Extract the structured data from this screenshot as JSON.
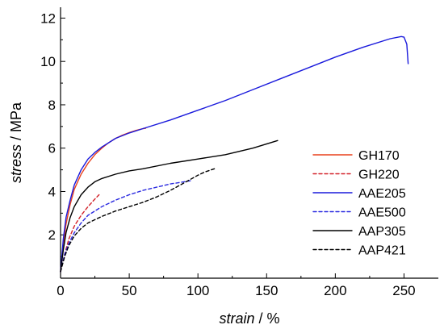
{
  "chart_data": {
    "type": "line",
    "xlabel": {
      "italic": "strain",
      "rest": " / %"
    },
    "ylabel": {
      "italic": "stress",
      "rest": " / MPa"
    },
    "xlim": [
      0,
      275
    ],
    "ylim": [
      0,
      12.5
    ],
    "xticks": [
      0,
      50,
      100,
      150,
      200,
      250
    ],
    "yticks": [
      2,
      4,
      6,
      8,
      10,
      12
    ],
    "legend_position": "center-right",
    "series": [
      {
        "name": "GH170",
        "color": "#e8401c",
        "dash": "solid",
        "points": [
          [
            0,
            0.3
          ],
          [
            2,
            1.5
          ],
          [
            4,
            2.5
          ],
          [
            7,
            3.4
          ],
          [
            10,
            4.1
          ],
          [
            15,
            4.8
          ],
          [
            20,
            5.3
          ],
          [
            25,
            5.7
          ],
          [
            30,
            6.0
          ],
          [
            35,
            6.25
          ],
          [
            40,
            6.45
          ],
          [
            45,
            6.6
          ],
          [
            50,
            6.72
          ],
          [
            55,
            6.82
          ],
          [
            60,
            6.9
          ],
          [
            62,
            6.92
          ]
        ]
      },
      {
        "name": "GH220",
        "color": "#d2222a",
        "dash": "dashed",
        "points": [
          [
            0,
            0.3
          ],
          [
            3,
            1.1
          ],
          [
            6,
            1.8
          ],
          [
            10,
            2.4
          ],
          [
            15,
            2.9
          ],
          [
            20,
            3.3
          ],
          [
            25,
            3.65
          ],
          [
            28,
            3.85
          ]
        ]
      },
      {
        "name": "AAE205",
        "color": "#1a1adc",
        "dash": "solid",
        "points": [
          [
            0,
            0.3
          ],
          [
            2,
            1.8
          ],
          [
            4,
            2.8
          ],
          [
            7,
            3.6
          ],
          [
            10,
            4.3
          ],
          [
            15,
            5.0
          ],
          [
            20,
            5.5
          ],
          [
            25,
            5.8
          ],
          [
            30,
            6.05
          ],
          [
            40,
            6.45
          ],
          [
            50,
            6.7
          ],
          [
            60,
            6.9
          ],
          [
            80,
            7.3
          ],
          [
            100,
            7.75
          ],
          [
            120,
            8.2
          ],
          [
            140,
            8.7
          ],
          [
            160,
            9.2
          ],
          [
            180,
            9.7
          ],
          [
            200,
            10.2
          ],
          [
            220,
            10.65
          ],
          [
            240,
            11.05
          ],
          [
            248,
            11.15
          ],
          [
            250,
            11.12
          ],
          [
            252,
            10.8
          ],
          [
            253,
            9.9
          ]
        ]
      },
      {
        "name": "AAE500",
        "color": "#2a2ae0",
        "dash": "dashed",
        "points": [
          [
            0,
            0.3
          ],
          [
            3,
            1.1
          ],
          [
            6,
            1.6
          ],
          [
            10,
            2.1
          ],
          [
            15,
            2.55
          ],
          [
            20,
            2.9
          ],
          [
            30,
            3.3
          ],
          [
            40,
            3.6
          ],
          [
            50,
            3.85
          ],
          [
            60,
            4.05
          ],
          [
            70,
            4.2
          ],
          [
            80,
            4.35
          ],
          [
            90,
            4.45
          ],
          [
            95,
            4.5
          ]
        ]
      },
      {
        "name": "AAP305",
        "color": "#000000",
        "dash": "solid",
        "points": [
          [
            0,
            0.3
          ],
          [
            2,
            1.3
          ],
          [
            4,
            2.1
          ],
          [
            7,
            2.8
          ],
          [
            10,
            3.3
          ],
          [
            15,
            3.85
          ],
          [
            20,
            4.2
          ],
          [
            25,
            4.45
          ],
          [
            30,
            4.6
          ],
          [
            40,
            4.8
          ],
          [
            50,
            4.95
          ],
          [
            60,
            5.05
          ],
          [
            80,
            5.3
          ],
          [
            100,
            5.5
          ],
          [
            120,
            5.7
          ],
          [
            140,
            6.0
          ],
          [
            158,
            6.35
          ]
        ]
      },
      {
        "name": "AAP421",
        "color": "#000000",
        "dash": "dashed",
        "points": [
          [
            0,
            0.3
          ],
          [
            3,
            1.0
          ],
          [
            6,
            1.5
          ],
          [
            10,
            1.95
          ],
          [
            15,
            2.3
          ],
          [
            20,
            2.55
          ],
          [
            30,
            2.85
          ],
          [
            40,
            3.1
          ],
          [
            50,
            3.3
          ],
          [
            60,
            3.5
          ],
          [
            70,
            3.75
          ],
          [
            80,
            4.05
          ],
          [
            90,
            4.4
          ],
          [
            100,
            4.75
          ],
          [
            105,
            4.9
          ],
          [
            112,
            5.05
          ]
        ]
      }
    ]
  }
}
